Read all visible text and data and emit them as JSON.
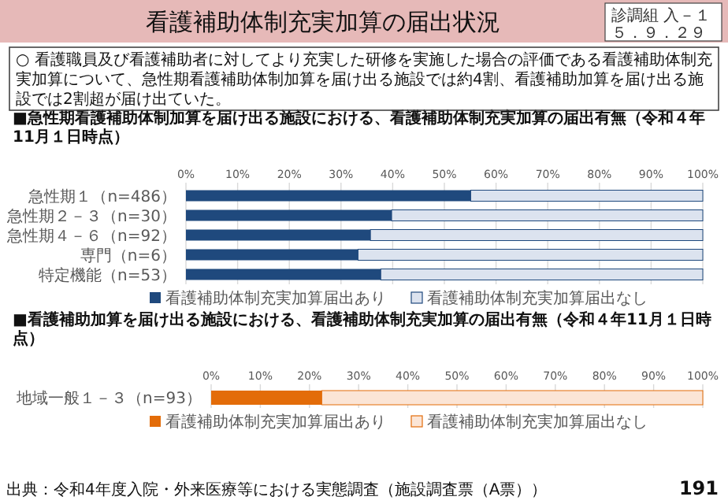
{
  "chart_data": [
    {
      "type": "bar",
      "orientation": "horizontal",
      "stacked": true,
      "title": "■急性期看護補助体制加算を届け出る施設における、看護補助体制充実加算の届出有無（令和４年11月１日時点）",
      "categories": [
        "急性期１（n=486）",
        "急性期２－３（n=30）",
        "急性期４－６（n=92）",
        "専門（n=6）",
        "特定機能（n=53）"
      ],
      "series": [
        {
          "name": "看護補助体制充実加算届出あり",
          "color": "#1f497d",
          "values": [
            55.1,
            39.8,
            35.7,
            33.3,
            37.7
          ]
        },
        {
          "name": "看護補助体制充実加算届出なし",
          "color": "#dce3ef",
          "values": [
            44.9,
            60.2,
            64.3,
            66.7,
            62.3
          ]
        }
      ],
      "xlim": [
        0,
        100
      ],
      "xticks": [
        {
          "value": 0,
          "label": "0%"
        },
        {
          "value": 10,
          "label": "10%"
        },
        {
          "value": 20,
          "label": "20%"
        },
        {
          "value": 30,
          "label": "30%"
        },
        {
          "value": 40,
          "label": "40%"
        },
        {
          "value": 50,
          "label": "50%"
        },
        {
          "value": 60,
          "label": "60%"
        },
        {
          "value": 70,
          "label": "70%"
        },
        {
          "value": 80,
          "label": "80%"
        },
        {
          "value": 90,
          "label": "90%"
        },
        {
          "value": 100,
          "label": "100%"
        }
      ],
      "grid": "x",
      "legend": "bottom",
      "annotations": [
        "看護補助体制充実加算の届出状況",
        "○ 看護職員及び看護補助者に対してより充実した研修を実施した場合の評価である看護補助体制充実加算について、急性期看護補助体制加算を届け出る施設では約4割、看護補助加算を届け出る施設では2割超が届け出ていた。",
        "診調組 入－１",
        "５．９．２９"
      ]
    },
    {
      "type": "bar",
      "orientation": "horizontal",
      "stacked": true,
      "title": "■看護補助加算を届け出る施設における、看護補助体制充実加算の届出有無（令和４年11月１日時点）",
      "categories": [
        "地域一般１－３（n=93）"
      ],
      "series": [
        {
          "name": "看護補助体制充実加算届出あり",
          "color": "#e36c09",
          "values": [
            22.5
          ]
        },
        {
          "name": "看護補助体制充実加算届出なし",
          "color": "#fbe5d6",
          "values": [
            77.5
          ]
        }
      ],
      "xlim": [
        0,
        100
      ],
      "xticks": [
        {
          "value": 0,
          "label": "0%"
        },
        {
          "value": 10,
          "label": "10%"
        },
        {
          "value": 20,
          "label": "20%"
        },
        {
          "value": 30,
          "label": "30%"
        },
        {
          "value": 40,
          "label": "40%"
        },
        {
          "value": 50,
          "label": "50%"
        },
        {
          "value": 60,
          "label": "60%"
        },
        {
          "value": 70,
          "label": "70%"
        },
        {
          "value": 80,
          "label": "80%"
        },
        {
          "value": 90,
          "label": "90%"
        },
        {
          "value": 100,
          "label": "100%"
        }
      ],
      "grid": "x",
      "legend": "bottom",
      "annotations": [
        "出典：令和4年度入院・外来医療等における実態調査（施設調査票（A票））",
        "191"
      ]
    }
  ]
}
